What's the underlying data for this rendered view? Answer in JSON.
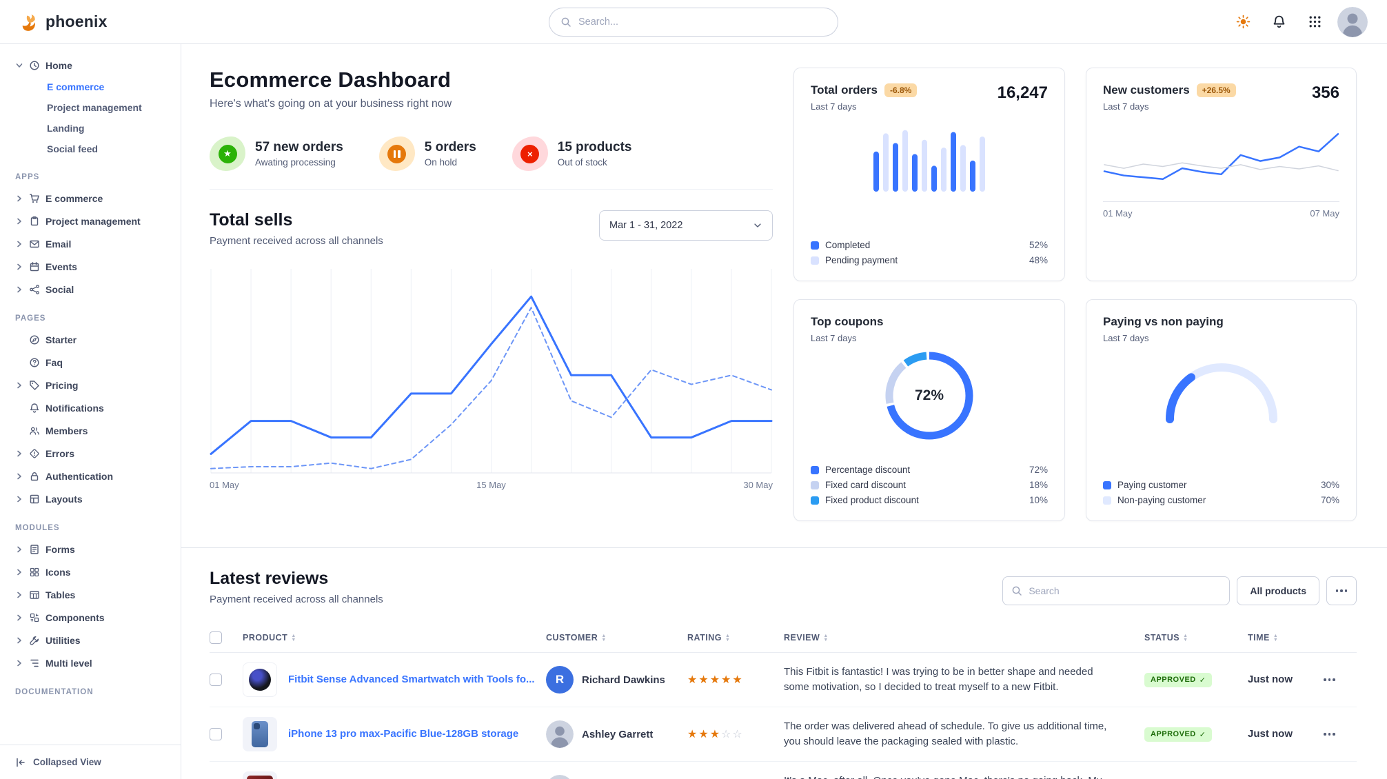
{
  "brand": {
    "name": "phoenix"
  },
  "navbar": {
    "search_placeholder": "Search...",
    "icons": [
      "sun-icon",
      "bell-icon",
      "grid-9-icon",
      "avatar"
    ]
  },
  "sidebar": {
    "home": {
      "label": "Home",
      "items": [
        {
          "label": "E commerce",
          "active": true
        },
        {
          "label": "Project management"
        },
        {
          "label": "Landing"
        },
        {
          "label": "Social feed"
        }
      ]
    },
    "sections": [
      {
        "title": "APPS",
        "items": [
          {
            "label": "E commerce",
            "icon": "cart-icon"
          },
          {
            "label": "Project management",
            "icon": "clipboard-icon"
          },
          {
            "label": "Email",
            "icon": "envelope-icon"
          },
          {
            "label": "Events",
            "icon": "calendar-icon"
          },
          {
            "label": "Social",
            "icon": "share-icon"
          }
        ]
      },
      {
        "title": "PAGES",
        "items": [
          {
            "label": "Starter",
            "icon": "compass-icon"
          },
          {
            "label": "Faq",
            "icon": "question-circle-icon"
          },
          {
            "label": "Pricing",
            "icon": "tag-icon"
          },
          {
            "label": "Notifications",
            "icon": "bell-icon"
          },
          {
            "label": "Members",
            "icon": "users-icon"
          },
          {
            "label": "Errors",
            "icon": "warning-icon"
          },
          {
            "label": "Authentication",
            "icon": "lock-icon"
          },
          {
            "label": "Layouts",
            "icon": "layout-icon"
          }
        ]
      },
      {
        "title": "MODULES",
        "items": [
          {
            "label": "Forms",
            "icon": "form-icon"
          },
          {
            "label": "Icons",
            "icon": "icons-grid-icon"
          },
          {
            "label": "Tables",
            "icon": "table-icon"
          },
          {
            "label": "Components",
            "icon": "components-icon"
          },
          {
            "label": "Utilities",
            "icon": "wrench-icon"
          },
          {
            "label": "Multi level",
            "icon": "list-tree-icon"
          }
        ]
      },
      {
        "title": "DOCUMENTATION",
        "items": []
      }
    ],
    "collapse_label": "Collapsed View"
  },
  "page": {
    "title": "Ecommerce Dashboard",
    "subtitle": "Here's what's going on at your business right now"
  },
  "stats": [
    {
      "value": "57 new orders",
      "caption": "Awating processing",
      "icon": "star-icon",
      "accent": "#2bb207",
      "bg": "#d9f3c9"
    },
    {
      "value": "5 orders",
      "caption": "On hold",
      "icon": "pause-icon",
      "accent": "#e5780b",
      "bg": "#ffe8c4"
    },
    {
      "value": "15 products",
      "caption": "Out of stock",
      "icon": "x-icon",
      "accent": "#ed2000",
      "bg": "#ffd8dc"
    }
  ],
  "total_sells": {
    "title": "Total sells",
    "subtitle": "Payment received across all channels",
    "date_range": "Mar 1 - 31, 2022"
  },
  "cards": {
    "total_orders": {
      "title": "Total orders",
      "badge": "-6.8%",
      "period": "Last 7 days",
      "value": "16,247",
      "legend": [
        {
          "label": "Completed",
          "value": "52%",
          "color": "#3874ff"
        },
        {
          "label": "Pending payment",
          "value": "48%",
          "color": "#d9e2ff"
        }
      ]
    },
    "new_customers": {
      "title": "New customers",
      "badge": "+26.5%",
      "period": "Last 7 days",
      "value": "356"
    },
    "top_coupons": {
      "title": "Top coupons",
      "period": "Last 7 days",
      "legend": [
        {
          "label": "Percentage discount",
          "value": "72%",
          "color": "#3874ff"
        },
        {
          "label": "Fixed card discount",
          "value": "18%",
          "color": "#c5d2f1"
        },
        {
          "label": "Fixed product discount",
          "value": "10%",
          "color": "#2b9cf2"
        }
      ]
    },
    "paying": {
      "title": "Paying vs non paying",
      "period": "Last 7 days",
      "legend": [
        {
          "label": "Paying customer",
          "value": "30%",
          "color": "#3874ff"
        },
        {
          "label": "Non-paying customer",
          "value": "70%",
          "color": "#e0e9ff"
        }
      ]
    }
  },
  "reviews": {
    "title": "Latest reviews",
    "subtitle": "Payment received across all channels",
    "search_placeholder": "Search",
    "filter_label": "All products",
    "columns": [
      "PRODUCT",
      "CUSTOMER",
      "RATING",
      "REVIEW",
      "STATUS",
      "TIME"
    ],
    "rows": [
      {
        "product": "Fitbit Sense Advanced Smartwatch with Tools fo...",
        "thumb": "watch",
        "customer": "Richard Dawkins",
        "avatar_initial": "R",
        "rating": 5,
        "review": "This Fitbit is fantastic! I was trying to be in better shape and needed some motivation, so I decided to treat myself to a new Fitbit.",
        "status": "APPROVED",
        "time": "Just now"
      },
      {
        "product": "iPhone 13 pro max-Pacific Blue-128GB storage",
        "thumb": "phone",
        "customer": "Ashley Garrett",
        "avatar_initial": "",
        "rating": 3,
        "review": "The order was delivered ahead of schedule. To give us additional time, you should leave the packaging sealed with plastic.",
        "status": "APPROVED",
        "time": "Just now"
      },
      {
        "product": "",
        "thumb": "laptop",
        "customer": "",
        "avatar_initial": "",
        "rating": 0,
        "review": "It's a Mac, after all. Once you've gone Mac, there's no going back. My first Mac lasted...",
        "status": "",
        "time": ""
      }
    ]
  },
  "chart_data": [
    {
      "name": "total-sells",
      "type": "line",
      "ylim": [
        0,
        110
      ],
      "grid": "vertical",
      "x_ticks": [
        "01 May",
        "15 May",
        "30 May"
      ],
      "series": [
        {
          "name": "Current period",
          "style": "solid",
          "color": "#3874ff",
          "width": 3,
          "values": [
            10,
            28,
            28,
            19,
            19,
            43,
            43,
            70,
            96,
            53,
            53,
            19,
            19,
            28,
            28
          ]
        },
        {
          "name": "Previous period",
          "style": "dashed",
          "color": "#6d96f7",
          "width": 2,
          "values": [
            2,
            3,
            3,
            5,
            2,
            7,
            26,
            50,
            90,
            39,
            30,
            56,
            48,
            53,
            45
          ]
        }
      ]
    },
    {
      "name": "total-orders",
      "type": "bar",
      "max": 100,
      "values": [
        62,
        90,
        75,
        95,
        58,
        80,
        40,
        68,
        92,
        72,
        48,
        85
      ],
      "colors": [
        "#3874ff",
        "#d9e2ff"
      ]
    },
    {
      "name": "new-customers",
      "type": "line",
      "ylim": [
        0,
        110
      ],
      "x_ticks": [
        "01 May",
        "07 May"
      ],
      "series": [
        {
          "name": "Customers",
          "style": "solid",
          "color": "#3874ff",
          "width": 2.5,
          "values": [
            35,
            28,
            25,
            22,
            40,
            34,
            30,
            62,
            52,
            58,
            76,
            68,
            97
          ]
        },
        {
          "name": "Baseline",
          "style": "solid",
          "color": "#d0d4dd",
          "width": 1.5,
          "values": [
            46,
            40,
            47,
            43,
            49,
            44,
            40,
            46,
            38,
            43,
            39,
            44,
            36
          ]
        }
      ]
    },
    {
      "name": "top-coupons",
      "type": "donut",
      "center_label": "72%",
      "segments": [
        {
          "label": "Percentage discount",
          "value": 72,
          "color": "#3874ff"
        },
        {
          "label": "Fixed card discount",
          "value": 18,
          "color": "#c5d2f1"
        },
        {
          "label": "Fixed product discount",
          "value": 10,
          "color": "#2b9cf2"
        }
      ]
    },
    {
      "name": "paying-gauge",
      "type": "gauge",
      "value": 30,
      "color": "#3874ff",
      "track": "#e0e9ff",
      "segments": [
        {
          "label": "Paying customer",
          "value": 30
        },
        {
          "label": "Non-paying customer",
          "value": 70
        }
      ]
    }
  ]
}
